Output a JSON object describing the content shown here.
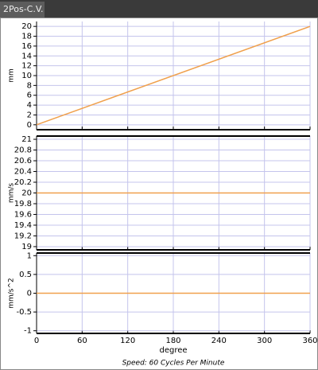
{
  "tab": "2Pos-C.V.",
  "footer": "Speed: 60 Cycles Per Minute",
  "chart_data": [
    {
      "type": "line",
      "ylabel": "mm",
      "x": [
        0,
        360
      ],
      "xlim": [
        0,
        360
      ],
      "xticks": [
        0,
        60,
        120,
        180,
        240,
        300,
        360
      ],
      "ylim": [
        -1,
        21
      ],
      "yticks": [
        0,
        2,
        4,
        6,
        8,
        10,
        12,
        14,
        16,
        18,
        20
      ],
      "grid": true,
      "series": [
        {
          "color": "#f0a04c",
          "values": [
            0,
            20
          ]
        }
      ]
    },
    {
      "type": "line",
      "ylabel": "mm/s",
      "x": [
        0,
        360
      ],
      "xlim": [
        0,
        360
      ],
      "xticks": [
        0,
        60,
        120,
        180,
        240,
        300,
        360
      ],
      "ylim": [
        18.94,
        21.06
      ],
      "yticks": [
        19,
        19.2,
        19.4,
        19.6,
        19.8,
        20,
        20.2,
        20.4,
        20.6,
        20.8,
        21
      ],
      "grid": true,
      "series": [
        {
          "color": "#f0a04c",
          "values": [
            20,
            20
          ]
        }
      ]
    },
    {
      "type": "line",
      "ylabel": "mm/s^2",
      "xlabel": "degree",
      "x": [
        0,
        360
      ],
      "xlim": [
        0,
        360
      ],
      "xticks": [
        0,
        60,
        120,
        180,
        240,
        300,
        360
      ],
      "ylim": [
        -1.07,
        1.07
      ],
      "yticks": [
        -1,
        -0.5,
        0,
        0.5,
        1
      ],
      "grid": true,
      "series": [
        {
          "color": "#f0a04c",
          "values": [
            0,
            0
          ]
        }
      ]
    }
  ]
}
